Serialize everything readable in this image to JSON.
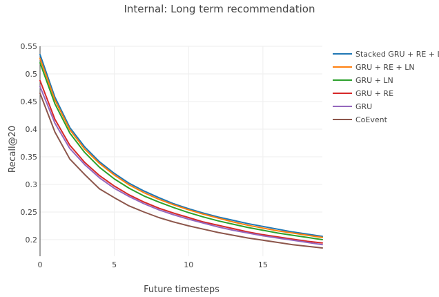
{
  "chart_data": {
    "type": "line",
    "title": "Internal: Long term recommendation",
    "xlabel": "Future timesteps",
    "ylabel": "Recall@20",
    "xlim": [
      0,
      19
    ],
    "ylim": [
      0.17,
      0.55
    ],
    "xticks": [
      0,
      5,
      10,
      15
    ],
    "yticks": [
      0.2,
      0.25,
      0.3,
      0.35,
      0.4,
      0.45,
      0.5,
      0.55
    ],
    "ytick_labels": [
      "0.2",
      "0.25",
      "0.3",
      "0.35",
      "0.4",
      "0.45",
      "0.5",
      "0.55"
    ],
    "grid": true,
    "legend_position": "right",
    "x": [
      0,
      1,
      2,
      3,
      4,
      5,
      6,
      7,
      8,
      9,
      10,
      11,
      12,
      13,
      14,
      15,
      16,
      17,
      18,
      19
    ],
    "series": [
      {
        "name": "Stacked GRU + RE + LN",
        "color": "#1f77b4",
        "values": [
          0.535,
          0.458,
          0.403,
          0.368,
          0.341,
          0.32,
          0.302,
          0.288,
          0.276,
          0.265,
          0.256,
          0.248,
          0.241,
          0.235,
          0.229,
          0.224,
          0.219,
          0.214,
          0.21,
          0.206
        ]
      },
      {
        "name": "GRU + RE + LN",
        "color": "#ff7f0e",
        "values": [
          0.528,
          0.453,
          0.399,
          0.364,
          0.338,
          0.317,
          0.299,
          0.285,
          0.273,
          0.263,
          0.254,
          0.246,
          0.239,
          0.232,
          0.226,
          0.221,
          0.216,
          0.212,
          0.208,
          0.204
        ]
      },
      {
        "name": "GRU + LN",
        "color": "#2ca02c",
        "values": [
          0.52,
          0.446,
          0.393,
          0.358,
          0.331,
          0.31,
          0.293,
          0.279,
          0.268,
          0.258,
          0.249,
          0.241,
          0.234,
          0.228,
          0.222,
          0.217,
          0.212,
          0.208,
          0.204,
          0.2
        ]
      },
      {
        "name": "GRU + RE",
        "color": "#d62728",
        "values": [
          0.488,
          0.418,
          0.371,
          0.34,
          0.316,
          0.297,
          0.281,
          0.268,
          0.257,
          0.248,
          0.24,
          0.232,
          0.226,
          0.22,
          0.214,
          0.209,
          0.205,
          0.201,
          0.197,
          0.194
        ]
      },
      {
        "name": "GRU",
        "color": "#9467bd",
        "values": [
          0.477,
          0.411,
          0.365,
          0.336,
          0.312,
          0.293,
          0.278,
          0.265,
          0.254,
          0.245,
          0.237,
          0.23,
          0.223,
          0.217,
          0.212,
          0.207,
          0.203,
          0.199,
          0.195,
          0.191
        ]
      },
      {
        "name": "CoEvent",
        "color": "#8c564b",
        "values": [
          0.465,
          0.395,
          0.346,
          0.318,
          0.292,
          0.276,
          0.261,
          0.25,
          0.24,
          0.232,
          0.225,
          0.219,
          0.213,
          0.208,
          0.203,
          0.199,
          0.195,
          0.191,
          0.188,
          0.185
        ]
      }
    ]
  }
}
